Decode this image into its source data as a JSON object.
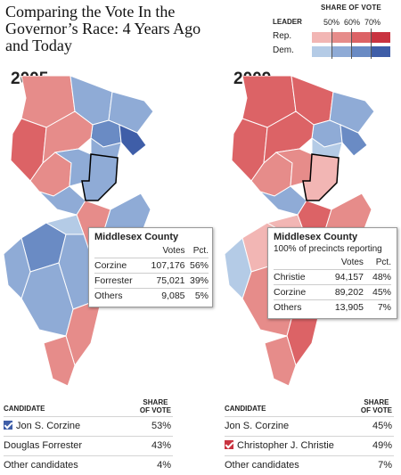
{
  "title": "Comparing the Vote In the Governor’s Race: 4 Years Ago and Today",
  "legend": {
    "share_label": "SHARE OF VOTE",
    "leader_label": "LEADER",
    "ticks": [
      "50%",
      "60%",
      "70%"
    ],
    "rows": [
      {
        "label": "Rep.",
        "colors": [
          "#f2b6b4",
          "#e68c8a",
          "#dc6366",
          "#c93340"
        ]
      },
      {
        "label": "Dem.",
        "colors": [
          "#b4cbe6",
          "#8fabd6",
          "#6a8bc4",
          "#3f5ea8"
        ]
      }
    ]
  },
  "years": [
    "2005",
    "2009"
  ],
  "popups": [
    {
      "county": "Middlesex County",
      "sub": "",
      "headers": [
        "",
        "Votes",
        "Pct."
      ],
      "rows": [
        [
          "Corzine",
          "107,176",
          "56%"
        ],
        [
          "Forrester",
          "75,021",
          "39%"
        ],
        [
          "Others",
          "9,085",
          "5%"
        ]
      ]
    },
    {
      "county": "Middlesex County",
      "sub": "100% of precincts reporting",
      "headers": [
        "",
        "Votes",
        "Pct."
      ],
      "rows": [
        [
          "Christie",
          "94,157",
          "48%"
        ],
        [
          "Corzine",
          "89,202",
          "45%"
        ],
        [
          "Others",
          "13,905",
          "7%"
        ]
      ]
    }
  ],
  "tables": [
    {
      "col_candidate": "CANDIDATE",
      "col_share": [
        "SHARE",
        "OF VOTE"
      ],
      "rows": [
        {
          "name": "Jon S. Corzine",
          "pct": "53%",
          "winner": true,
          "color": "#3f5ea8"
        },
        {
          "name": "Douglas Forrester",
          "pct": "43%",
          "winner": false,
          "color": ""
        },
        {
          "name": "Other candidates",
          "pct": "4%",
          "winner": false,
          "color": ""
        }
      ]
    },
    {
      "col_candidate": "CANDIDATE",
      "col_share": [
        "SHARE",
        "OF VOTE"
      ],
      "rows": [
        {
          "name": "Jon S. Corzine",
          "pct": "45%",
          "winner": false,
          "color": ""
        },
        {
          "name": "Christopher J. Christie",
          "pct": "49%",
          "winner": true,
          "color": "#c93340"
        },
        {
          "name": "Other candidates",
          "pct": "7%",
          "winner": false,
          "color": ""
        }
      ]
    }
  ],
  "map_colors": {
    "map2005": [
      "#e68c8a",
      "#8fabd6",
      "#8fabd6",
      "#6a8bc4",
      "#3f5ea8",
      "#dc6366",
      "#e68c8a",
      "#e68c8a",
      "#8fabd6",
      "#8fabd6",
      "#8fabd6",
      "#e68c8a",
      "#8fabd6",
      "#8fabd6",
      "#6a8bc4",
      "#b4cbe6",
      "#8fabd6",
      "#8fabd6",
      "#e68c8a",
      "#e68c8a",
      "#8fabd6"
    ],
    "map2009": [
      "#dc6366",
      "#dc6366",
      "#8fabd6",
      "#8fabd6",
      "#6a8bc4",
      "#dc6366",
      "#dc6366",
      "#e68c8a",
      "#e68c8a",
      "#b4cbe6",
      "#8fabd6",
      "#dc6366",
      "#e68c8a",
      "#f2b6b4",
      "#f2b6b4",
      "#f2b6b4",
      "#8fabd6",
      "#e68c8a",
      "#dc6366",
      "#e68c8a",
      "#b4cbe6"
    ]
  }
}
